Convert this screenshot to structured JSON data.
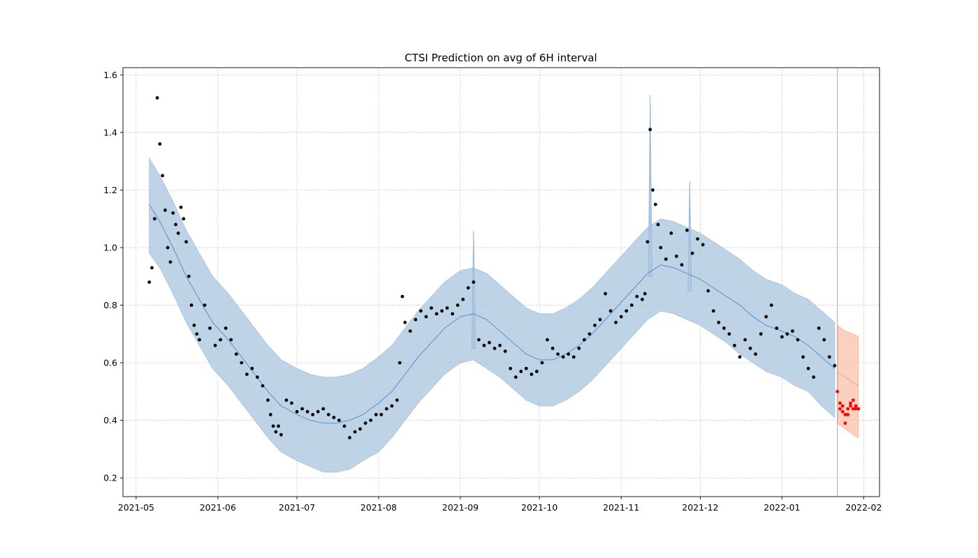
{
  "chart_data": {
    "type": "line",
    "title": "CTSI Prediction on avg of 6H interval",
    "xlabel": "",
    "ylabel": "",
    "xlim": [
      "2021-04-26",
      "2022-02-07"
    ],
    "ylim": [
      0.135,
      1.625
    ],
    "grid": true,
    "x_ticks": [
      "2021-05",
      "2021-06",
      "2021-07",
      "2021-08",
      "2021-09",
      "2021-10",
      "2021-11",
      "2021-12",
      "2022-01",
      "2022-02"
    ],
    "y_ticks": [
      "0.2",
      "0.4",
      "0.6",
      "0.8",
      "1.0",
      "1.2",
      "1.4",
      "1.6"
    ],
    "forecast_start": "2022-01-22",
    "colors": {
      "band": "#b0c9e2",
      "band_edge": "#9bb8d6",
      "trend": "#4c86c6",
      "actual": "#000000",
      "forecast_band": "#fcc8b4",
      "forecast_actual": "#ff0000",
      "cutoff": "#9a9a9a"
    },
    "fit": {
      "x": [
        "2021-05-06",
        "2021-05-10",
        "2021-05-15",
        "2021-05-20",
        "2021-05-25",
        "2021-05-30",
        "2021-06-05",
        "2021-06-10",
        "2021-06-15",
        "2021-06-20",
        "2021-06-25",
        "2021-07-01",
        "2021-07-06",
        "2021-07-11",
        "2021-07-16",
        "2021-07-21",
        "2021-07-26",
        "2021-08-01",
        "2021-08-06",
        "2021-08-11",
        "2021-08-16",
        "2021-08-21",
        "2021-08-26",
        "2021-09-01",
        "2021-09-06",
        "2021-09-11",
        "2021-09-16",
        "2021-09-21",
        "2021-09-26",
        "2021-10-01",
        "2021-10-06",
        "2021-10-11",
        "2021-10-16",
        "2021-10-21",
        "2021-10-26",
        "2021-11-01",
        "2021-11-06",
        "2021-11-11",
        "2021-11-16",
        "2021-11-21",
        "2021-11-26",
        "2021-12-01",
        "2021-12-06",
        "2021-12-11",
        "2021-12-16",
        "2021-12-21",
        "2021-12-26",
        "2022-01-01",
        "2022-01-06",
        "2022-01-11",
        "2022-01-16",
        "2022-01-21"
      ],
      "yhat": [
        1.15,
        1.09,
        1.0,
        0.9,
        0.82,
        0.74,
        0.68,
        0.62,
        0.56,
        0.5,
        0.45,
        0.42,
        0.4,
        0.39,
        0.39,
        0.4,
        0.42,
        0.46,
        0.5,
        0.56,
        0.62,
        0.67,
        0.72,
        0.76,
        0.77,
        0.75,
        0.71,
        0.67,
        0.63,
        0.61,
        0.61,
        0.63,
        0.66,
        0.7,
        0.75,
        0.81,
        0.86,
        0.91,
        0.94,
        0.93,
        0.91,
        0.89,
        0.86,
        0.83,
        0.8,
        0.76,
        0.73,
        0.71,
        0.69,
        0.66,
        0.62,
        0.58
      ],
      "lower": [
        0.98,
        0.93,
        0.84,
        0.74,
        0.66,
        0.58,
        0.52,
        0.46,
        0.4,
        0.34,
        0.29,
        0.26,
        0.24,
        0.22,
        0.22,
        0.23,
        0.26,
        0.29,
        0.34,
        0.4,
        0.46,
        0.51,
        0.56,
        0.6,
        0.61,
        0.58,
        0.55,
        0.51,
        0.47,
        0.45,
        0.45,
        0.47,
        0.5,
        0.54,
        0.59,
        0.65,
        0.7,
        0.75,
        0.78,
        0.77,
        0.75,
        0.73,
        0.7,
        0.67,
        0.63,
        0.6,
        0.57,
        0.55,
        0.52,
        0.5,
        0.45,
        0.41
      ],
      "upper": [
        1.31,
        1.25,
        1.16,
        1.06,
        0.98,
        0.9,
        0.84,
        0.78,
        0.72,
        0.66,
        0.61,
        0.58,
        0.56,
        0.55,
        0.55,
        0.56,
        0.58,
        0.62,
        0.66,
        0.72,
        0.78,
        0.83,
        0.88,
        0.92,
        0.93,
        0.91,
        0.87,
        0.83,
        0.79,
        0.77,
        0.77,
        0.79,
        0.82,
        0.86,
        0.91,
        0.97,
        1.02,
        1.07,
        1.1,
        1.09,
        1.07,
        1.05,
        1.02,
        0.99,
        0.96,
        0.92,
        0.89,
        0.87,
        0.84,
        0.82,
        0.78,
        0.74
      ]
    },
    "spikes": [
      {
        "x": "2021-09-06",
        "upper": 1.06,
        "lower": 0.65
      },
      {
        "x": "2021-11-12",
        "upper": 1.53,
        "lower": 0.9
      },
      {
        "x": "2021-11-27",
        "upper": 1.23,
        "lower": 0.85
      }
    ],
    "forecast": {
      "x": [
        "2022-01-22",
        "2022-01-25",
        "2022-01-28",
        "2022-01-30"
      ],
      "yhat": [
        0.57,
        0.55,
        0.53,
        0.52
      ],
      "lower": [
        0.39,
        0.37,
        0.35,
        0.34
      ],
      "upper": [
        0.73,
        0.71,
        0.7,
        0.69
      ]
    },
    "actual": {
      "x": [
        "2021-05-06",
        "2021-05-07",
        "2021-05-08",
        "2021-05-09",
        "2021-05-10",
        "2021-05-11",
        "2021-05-12",
        "2021-05-13",
        "2021-05-14",
        "2021-05-15",
        "2021-05-16",
        "2021-05-17",
        "2021-05-18",
        "2021-05-19",
        "2021-05-20",
        "2021-05-21",
        "2021-05-22",
        "2021-05-23",
        "2021-05-24",
        "2021-05-25",
        "2021-05-27",
        "2021-05-29",
        "2021-05-31",
        "2021-06-02",
        "2021-06-04",
        "2021-06-06",
        "2021-06-08",
        "2021-06-10",
        "2021-06-12",
        "2021-06-14",
        "2021-06-16",
        "2021-06-18",
        "2021-06-20",
        "2021-06-21",
        "2021-06-22",
        "2021-06-23",
        "2021-06-24",
        "2021-06-25",
        "2021-06-27",
        "2021-06-29",
        "2021-07-01",
        "2021-07-03",
        "2021-07-05",
        "2021-07-07",
        "2021-07-09",
        "2021-07-11",
        "2021-07-13",
        "2021-07-15",
        "2021-07-17",
        "2021-07-19",
        "2021-07-21",
        "2021-07-23",
        "2021-07-25",
        "2021-07-27",
        "2021-07-29",
        "2021-07-31",
        "2021-08-02",
        "2021-08-04",
        "2021-08-06",
        "2021-08-08",
        "2021-08-09",
        "2021-08-10",
        "2021-08-11",
        "2021-08-13",
        "2021-08-15",
        "2021-08-17",
        "2021-08-19",
        "2021-08-21",
        "2021-08-23",
        "2021-08-25",
        "2021-08-27",
        "2021-08-29",
        "2021-08-31",
        "2021-09-02",
        "2021-09-04",
        "2021-09-06",
        "2021-09-08",
        "2021-09-10",
        "2021-09-12",
        "2021-09-14",
        "2021-09-16",
        "2021-09-18",
        "2021-09-20",
        "2021-09-22",
        "2021-09-24",
        "2021-09-26",
        "2021-09-28",
        "2021-09-30",
        "2021-10-02",
        "2021-10-04",
        "2021-10-06",
        "2021-10-08",
        "2021-10-10",
        "2021-10-12",
        "2021-10-14",
        "2021-10-16",
        "2021-10-18",
        "2021-10-20",
        "2021-10-22",
        "2021-10-24",
        "2021-10-26",
        "2021-10-28",
        "2021-10-30",
        "2021-11-01",
        "2021-11-03",
        "2021-11-05",
        "2021-11-07",
        "2021-11-09",
        "2021-11-10",
        "2021-11-11",
        "2021-11-12",
        "2021-11-13",
        "2021-11-14",
        "2021-11-15",
        "2021-11-16",
        "2021-11-18",
        "2021-11-20",
        "2021-11-22",
        "2021-11-24",
        "2021-11-26",
        "2021-11-28",
        "2021-11-30",
        "2021-12-02",
        "2021-12-04",
        "2021-12-06",
        "2021-12-08",
        "2021-12-10",
        "2021-12-12",
        "2021-12-14",
        "2021-12-16",
        "2021-12-18",
        "2021-12-20",
        "2021-12-22",
        "2021-12-24",
        "2021-12-26",
        "2021-12-28",
        "2021-12-30",
        "2022-01-01",
        "2022-01-03",
        "2022-01-05",
        "2022-01-07",
        "2022-01-09",
        "2022-01-11",
        "2022-01-13",
        "2022-01-15",
        "2022-01-17",
        "2022-01-19",
        "2022-01-21"
      ],
      "y": [
        0.88,
        0.93,
        1.1,
        1.52,
        1.36,
        1.25,
        1.13,
        1.0,
        0.95,
        1.12,
        1.08,
        1.05,
        1.14,
        1.1,
        1.02,
        0.9,
        0.8,
        0.73,
        0.7,
        0.68,
        0.8,
        0.72,
        0.66,
        0.68,
        0.72,
        0.68,
        0.63,
        0.6,
        0.56,
        0.58,
        0.55,
        0.52,
        0.47,
        0.42,
        0.38,
        0.36,
        0.38,
        0.35,
        0.47,
        0.46,
        0.43,
        0.44,
        0.43,
        0.42,
        0.43,
        0.44,
        0.42,
        0.41,
        0.4,
        0.38,
        0.34,
        0.36,
        0.37,
        0.39,
        0.4,
        0.42,
        0.42,
        0.44,
        0.45,
        0.47,
        0.6,
        0.83,
        0.74,
        0.71,
        0.75,
        0.78,
        0.76,
        0.79,
        0.77,
        0.78,
        0.79,
        0.77,
        0.8,
        0.82,
        0.86,
        0.88,
        0.68,
        0.66,
        0.67,
        0.65,
        0.66,
        0.64,
        0.58,
        0.55,
        0.57,
        0.58,
        0.56,
        0.57,
        0.6,
        0.68,
        0.65,
        0.63,
        0.62,
        0.63,
        0.62,
        0.65,
        0.68,
        0.7,
        0.73,
        0.75,
        0.84,
        0.78,
        0.74,
        0.76,
        0.78,
        0.8,
        0.83,
        0.82,
        0.84,
        1.02,
        1.41,
        1.2,
        1.15,
        1.08,
        1.0,
        0.96,
        1.05,
        0.97,
        0.94,
        1.06,
        0.98,
        1.03,
        1.01,
        0.85,
        0.78,
        0.74,
        0.72,
        0.7,
        0.66,
        0.62,
        0.68,
        0.65,
        0.63,
        0.7,
        0.76,
        0.8,
        0.72,
        0.69,
        0.7,
        0.71,
        0.68,
        0.62,
        0.58,
        0.55,
        0.72,
        0.68,
        0.62,
        0.59
      ]
    },
    "forecast_actual": {
      "x": [
        "2022-01-22",
        "2022-01-23",
        "2022-01-23",
        "2022-01-24",
        "2022-01-24",
        "2022-01-25",
        "2022-01-25",
        "2022-01-26",
        "2022-01-26",
        "2022-01-27",
        "2022-01-27",
        "2022-01-28",
        "2022-01-28",
        "2022-01-29",
        "2022-01-29",
        "2022-01-30"
      ],
      "y": [
        0.5,
        0.46,
        0.44,
        0.45,
        0.43,
        0.42,
        0.39,
        0.42,
        0.44,
        0.46,
        0.45,
        0.44,
        0.47,
        0.45,
        0.44,
        0.44
      ]
    }
  }
}
